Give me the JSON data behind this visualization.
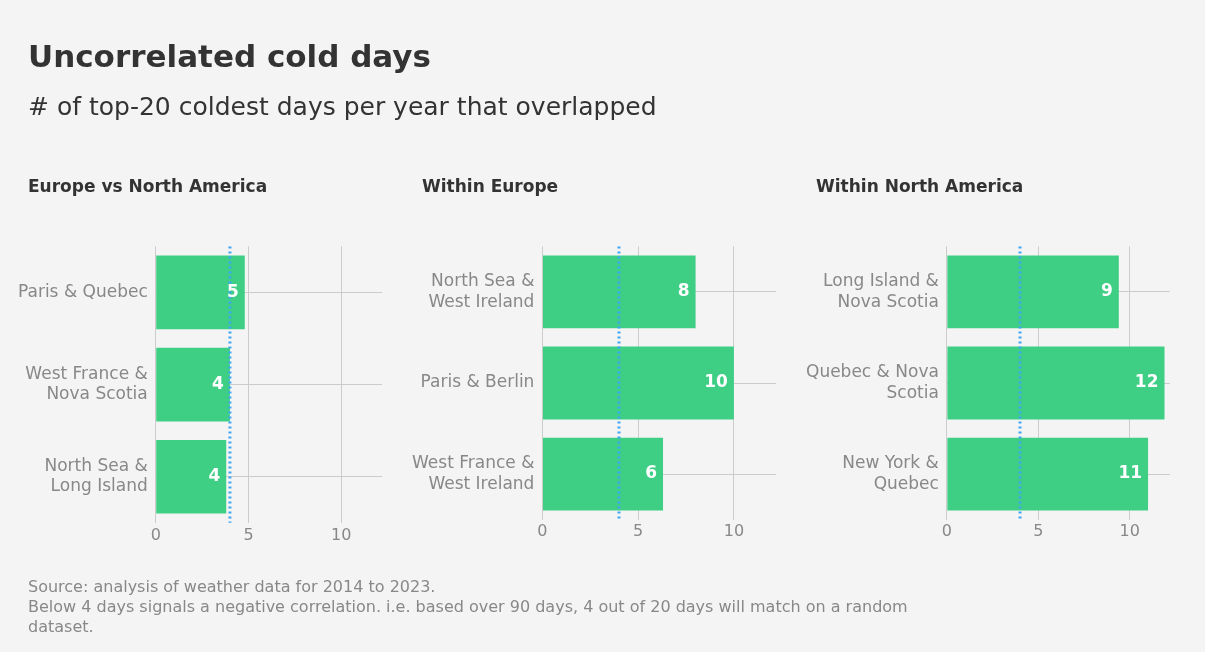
{
  "chart_data": [
    {
      "type": "other",
      "title": "Uncorrelated cold days",
      "subtitle": "# of top-20 coldest days per year that overlapped",
      "annotations": [
        "Source: analysis of weather data for 2014 to 2023.",
        "Below 4 days signals a negative correlation. i.e. based over 90 days, 4 out of 20 days will match on a random dataset."
      ]
    },
    {
      "type": "bar",
      "orientation": "horizontal",
      "title": "Europe vs North America",
      "categories": [
        "Paris & Quebec",
        "West France & Nova Scotia",
        "North Sea & Long Island"
      ],
      "values": [
        4.8,
        4.0,
        3.8
      ],
      "value_labels": [
        "5",
        "4",
        "4"
      ],
      "color": "#3ecf85",
      "xlim": [
        0,
        12.2
      ],
      "xticks": [
        0,
        5,
        10
      ],
      "grid": true,
      "ref_lines": [
        {
          "axis": "x",
          "value": 4,
          "color": "#3da5f4",
          "line_style": "dotted"
        }
      ]
    },
    {
      "type": "bar",
      "orientation": "horizontal",
      "title": "Within Europe",
      "categories": [
        "North Sea & West Ireland",
        "Paris & Berlin",
        "West France & West Ireland"
      ],
      "values": [
        8.0,
        10.0,
        6.3
      ],
      "value_labels": [
        "8",
        "10",
        "6"
      ],
      "color": "#3ecf85",
      "xlim": [
        0,
        12.2
      ],
      "xticks": [
        0,
        5,
        10
      ],
      "grid": true,
      "ref_lines": [
        {
          "axis": "x",
          "value": 4,
          "color": "#3da5f4",
          "line_style": "dotted"
        }
      ]
    },
    {
      "type": "bar",
      "orientation": "horizontal",
      "title": "Within North America",
      "categories": [
        "Long Island & Nova Scotia",
        "Quebec & Nova Scotia",
        "New York & Quebec"
      ],
      "values": [
        9.4,
        11.9,
        11.0
      ],
      "value_labels": [
        "9",
        "12",
        "11"
      ],
      "color": "#3ecf85",
      "xlim": [
        0,
        12.2
      ],
      "xticks": [
        0,
        5,
        10
      ],
      "grid": true,
      "ref_lines": [
        {
          "axis": "x",
          "value": 4,
          "color": "#3da5f4",
          "line_style": "dotted"
        }
      ]
    }
  ]
}
